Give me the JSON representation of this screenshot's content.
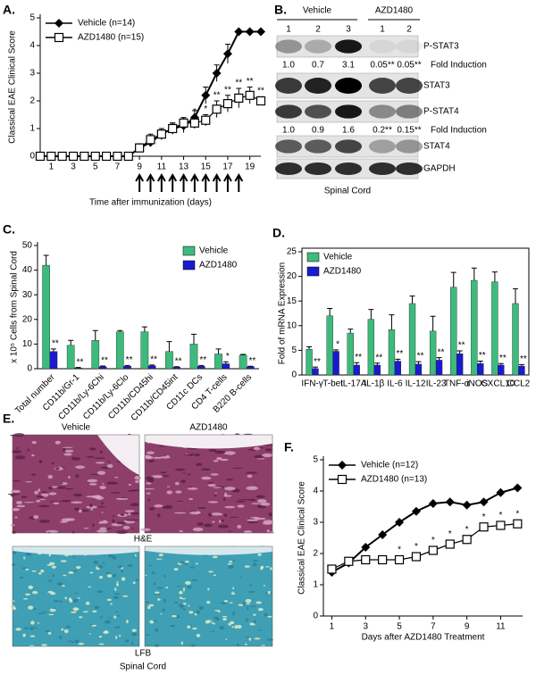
{
  "chart_data": [
    {
      "type": "line",
      "label": "A.",
      "ylabel": "Classical EAE Clinical Score",
      "xlabel": "Time after immunization (days)",
      "x": [
        0,
        1,
        2,
        3,
        4,
        5,
        6,
        7,
        8,
        9,
        10,
        11,
        12,
        13,
        14,
        15,
        16,
        17,
        18,
        19,
        20
      ],
      "xlim": [
        0,
        20
      ],
      "xticks": [
        1,
        3,
        5,
        7,
        9,
        11,
        13,
        15,
        17,
        19
      ],
      "ylim": [
        0,
        5
      ],
      "yticks": [
        0,
        1,
        2,
        3,
        4,
        5
      ],
      "legend": "upper left",
      "series": [
        {
          "name": "Vehicle (n=14)",
          "color": "#000000",
          "marker": "diamond",
          "values": [
            0,
            0,
            0,
            0,
            0,
            0,
            0,
            0,
            0,
            0.3,
            0.5,
            0.8,
            1.0,
            1.1,
            1.4,
            2.2,
            3.0,
            3.7,
            4.5,
            4.5,
            4.5
          ],
          "errors": [
            0,
            0,
            0,
            0,
            0,
            0,
            0,
            0,
            0,
            0.1,
            0.15,
            0.2,
            0.2,
            0.25,
            0.25,
            0.3,
            0.3,
            0.35,
            0,
            0,
            0
          ]
        },
        {
          "name": "AZD1480 (n=15)",
          "color": "#000000",
          "marker": "square",
          "values": [
            0,
            0,
            0,
            0,
            0,
            0,
            0,
            0,
            0,
            0.3,
            0.6,
            0.8,
            1.0,
            1.2,
            1.2,
            1.3,
            1.7,
            1.9,
            2.1,
            2.2,
            2.0
          ],
          "errors": [
            0,
            0,
            0,
            0,
            0,
            0,
            0,
            0,
            0,
            0.15,
            0.2,
            0.2,
            0.2,
            0.2,
            0.2,
            0.2,
            0.3,
            0.3,
            0.35,
            0.3,
            0.15
          ],
          "significance": [
            null,
            null,
            null,
            null,
            null,
            null,
            null,
            null,
            null,
            null,
            null,
            null,
            null,
            null,
            "*",
            "*",
            "**",
            "**",
            "**",
            "**",
            "**"
          ]
        }
      ]
    },
    {
      "type": "bar",
      "label": "C.",
      "ylabel": "x 10⁵ Cells from Spinal Cord",
      "categories": [
        "Total number",
        "CD11b/Gr-1",
        "CD11b/Ly-6Chi",
        "CD11b/Ly-6Clo",
        "CD11b/CD45hi",
        "CD11b/CD45int",
        "CD11c DCs",
        "CD4 T-cells",
        "B220 B-cells"
      ],
      "ylim": [
        0,
        50
      ],
      "yticks": [
        0,
        10,
        20,
        30,
        40,
        50
      ],
      "legend": "upper right",
      "series": [
        {
          "name": "Vehicle",
          "color": "#3dbb7d",
          "values": [
            42,
            9.5,
            11.5,
            15,
            15,
            7,
            10,
            6,
            5.5
          ],
          "errors": [
            4,
            2,
            4,
            0.5,
            2,
            4,
            4,
            2,
            0.3
          ]
        },
        {
          "name": "AZD1480",
          "color": "#1a1ad0",
          "values": [
            7,
            0.3,
            0.8,
            1,
            1.2,
            0.6,
            1,
            2,
            0.8
          ],
          "errors": [
            1,
            0.2,
            0.3,
            0.3,
            0.3,
            0.2,
            0.3,
            0.8,
            0.2
          ],
          "significance": [
            "**",
            "**",
            "**",
            "**",
            "**",
            "**",
            "**",
            "*",
            "**"
          ]
        }
      ]
    },
    {
      "type": "bar",
      "label": "D.",
      "ylabel": "Fold of mRNA Expression",
      "categories": [
        "IFN-γ",
        "T-bet",
        "IL-17A",
        "IL-1β",
        "IL-6",
        "IL-12",
        "IL-23",
        "TNF-α",
        "iNOS",
        "CXCL10",
        "CCL2"
      ],
      "ylim": [
        0,
        25
      ],
      "yticks": [
        0,
        5,
        10,
        15,
        20,
        25
      ],
      "legend": "upper left",
      "series": [
        {
          "name": "Vehicle",
          "color": "#3dbb7d",
          "values": [
            5.2,
            12,
            8.5,
            11.3,
            9.2,
            14.5,
            8.9,
            17.8,
            19.2,
            18.9,
            14.5
          ],
          "errors": [
            0.5,
            1.5,
            0.8,
            2,
            3,
            1.5,
            3,
            3,
            2.5,
            2,
            3
          ]
        },
        {
          "name": "AZD1480",
          "color": "#1a1ad0",
          "values": [
            1.3,
            4.8,
            2,
            2,
            2.8,
            2.2,
            3,
            4.3,
            2.3,
            2,
            1.8
          ],
          "errors": [
            0.3,
            0.3,
            0.5,
            0.4,
            0.4,
            0.5,
            0.5,
            0.6,
            0.5,
            0.3,
            0.3
          ],
          "significance": [
            "**",
            "*",
            "**",
            "**",
            "**",
            "**",
            "**",
            "**",
            "**",
            "**",
            "**"
          ]
        }
      ]
    },
    {
      "type": "line",
      "label": "F.",
      "ylabel": "Classical EAE Clinical Score",
      "xlabel": "Days after AZD1480 Treatment",
      "x": [
        1,
        2,
        3,
        4,
        5,
        6,
        7,
        8,
        9,
        10,
        11,
        12
      ],
      "xlim": [
        0.5,
        12.3
      ],
      "xticks": [
        1,
        3,
        5,
        7,
        9,
        11
      ],
      "ylim": [
        0,
        5
      ],
      "yticks": [
        0,
        1,
        2,
        3,
        4,
        5
      ],
      "legend": "upper left",
      "series": [
        {
          "name": "Vehicle (n=12)",
          "color": "#000000",
          "marker": "diamond",
          "values": [
            1.4,
            1.7,
            2.2,
            2.6,
            3.0,
            3.35,
            3.6,
            3.65,
            3.55,
            3.65,
            3.95,
            4.1
          ]
        },
        {
          "name": "AZD1480 (n=13)",
          "color": "#000000",
          "marker": "square",
          "values": [
            1.5,
            1.75,
            1.8,
            1.8,
            1.8,
            1.9,
            2.1,
            2.3,
            2.45,
            2.85,
            2.9,
            2.95
          ],
          "significance": [
            null,
            null,
            null,
            null,
            "*",
            "*",
            "*",
            "*",
            "*",
            "*",
            "*",
            "*"
          ]
        }
      ]
    }
  ],
  "blot": {
    "label": "B.",
    "groups": [
      {
        "name": "Vehicle",
        "lanes": [
          "1",
          "2",
          "3"
        ]
      },
      {
        "name": "AZD1480",
        "lanes": [
          "1",
          "2"
        ]
      }
    ],
    "fold_label": "Fold Induction",
    "rows": [
      {
        "name": "P-STAT3",
        "fold": [
          "1.0",
          "0.7",
          "3.1",
          "0.05**",
          "0.05**"
        ]
      },
      {
        "name": "STAT3"
      },
      {
        "name": "P-STAT4",
        "fold": [
          "1.0",
          "0.9",
          "1.6",
          "0.2**",
          "0.15**"
        ]
      },
      {
        "name": "STAT4"
      },
      {
        "name": "GAPDH"
      }
    ],
    "tissue": "Spinal Cord"
  },
  "histology": {
    "label": "E.",
    "columns": [
      "Vehicle",
      "AZD1480"
    ],
    "stains": [
      "H&E",
      "LFB"
    ],
    "tissue": "Spinal Cord"
  }
}
